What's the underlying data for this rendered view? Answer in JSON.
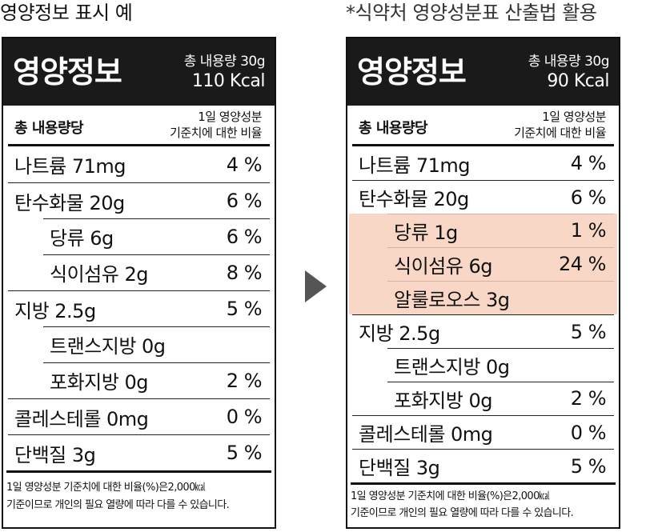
{
  "headings": {
    "example": "영양정보 표시 예",
    "mfds": "*식약처 영양성분표 산출법 활용"
  },
  "colors": {
    "header_bg": "#1a1a1a",
    "highlight": "#f9d7c7",
    "arrow": "#555555"
  },
  "labels": [
    {
      "title": "영양정보",
      "total": "총 내용량 30g",
      "energy": "110 Kcal",
      "per": "총 내용량당",
      "ratio_1": "1일 영양성분",
      "ratio_2": "기준치에 대한 비율",
      "rows": [
        {
          "name": "나트륨 71mg",
          "pct": "4 %"
        },
        {
          "name": "탄수화물 20g",
          "pct": "6 %"
        },
        {
          "name": "당류 6g",
          "pct": "6 %"
        },
        {
          "name": "식이섬유 2g",
          "pct": "8 %"
        },
        {
          "name": "지방 2.5g",
          "pct": "5 %"
        },
        {
          "name": "트랜스지방 0g"
        },
        {
          "name": "포화지방 0g",
          "pct": "2 %"
        },
        {
          "name": "콜레스테롤 0mg",
          "pct": "0 %"
        },
        {
          "name": "단백질 3g",
          "pct": "5 %"
        }
      ],
      "footer_1": "1일 영양성분 기준치에 대한 비율(%)은2,000㎉",
      "footer_2": "기준이므로 개인의 필요 열량에 따라 다를 수 있습니다."
    },
    {
      "title": "영양정보",
      "total": "총 내용량 30g",
      "energy": "90 Kcal",
      "per": "총 내용량당",
      "ratio_1": "1일 영양성분",
      "ratio_2": "기준치에 대한 비율",
      "rows": [
        {
          "name": "나트륨 71mg",
          "pct": "4 %"
        },
        {
          "name": "탄수화물 20g",
          "pct": "6 %"
        },
        {
          "name": "당류 1g",
          "pct": "1 %"
        },
        {
          "name": "식이섬유 6g",
          "pct": "24 %"
        },
        {
          "name": "알룰로오스 3g"
        },
        {
          "name": "지방 2.5g",
          "pct": "5 %"
        },
        {
          "name": "트랜스지방 0g"
        },
        {
          "name": "포화지방 0g",
          "pct": "2 %"
        },
        {
          "name": "콜레스테롤 0mg",
          "pct": "0 %"
        },
        {
          "name": "단백질 3g",
          "pct": "5 %"
        }
      ],
      "footer_1": "1일 영양성분 기준치에 대한 비율(%)은2,000㎉",
      "footer_2": "기준이므로 개인의 필요 열량에 따라 다를 수 있습니다."
    }
  ]
}
